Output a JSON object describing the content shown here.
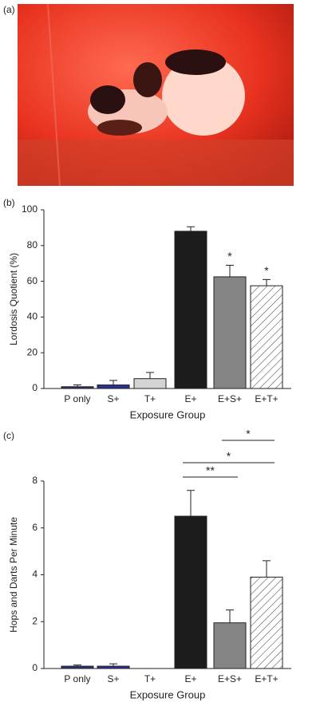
{
  "photo_label": "(a)",
  "chart_data": [
    {
      "type": "bar",
      "panel_label": "(b)",
      "y_label": "Lordosis Quotient (%)",
      "x_label": "Exposure Group",
      "categories": [
        "P only",
        "S+",
        "T+",
        "E+",
        "E+S+",
        "E+T+"
      ],
      "values": [
        1,
        2,
        5.5,
        88,
        62.5,
        57.5
      ],
      "errors": [
        1,
        2.5,
        3.5,
        2.5,
        6.5,
        3.5
      ],
      "colors": [
        "#2b2f7c",
        "#2b3096",
        "#d4d4d4",
        "#1c1c1c",
        "#858585",
        "#ffffff"
      ],
      "hatched": "E+T+",
      "ylim": [
        0,
        100
      ],
      "yticks": [
        0,
        20,
        40,
        60,
        80,
        100
      ],
      "annotations": [
        {
          "text": "*",
          "x": "E+S+"
        },
        {
          "text": "*",
          "x": "E+T+"
        }
      ]
    },
    {
      "type": "bar",
      "panel_label": "(c)",
      "y_label": "Hops and Darts Per Minute",
      "x_label": "Exposure Group",
      "categories": [
        "P only",
        "S+",
        "T+",
        "E+",
        "E+S+",
        "E+T+"
      ],
      "values": [
        0.1,
        0.1,
        0,
        6.5,
        1.95,
        3.9
      ],
      "errors": [
        0.05,
        0.1,
        null,
        1.1,
        0.55,
        0.7
      ],
      "colors": [
        "#2b2f7c",
        "#2b3096",
        "#d4d4d4",
        "#1c1c1c",
        "#858585",
        "#ffffff"
      ],
      "hatched": "E+T+",
      "ylim": [
        0,
        8
      ],
      "yticks": [
        0,
        2,
        4,
        6,
        8
      ],
      "brackets": [
        {
          "text": "**",
          "from": "E+",
          "to": "E+S+"
        },
        {
          "text": "*",
          "from": "E+",
          "to": "E+T+"
        },
        {
          "text": "*",
          "from": "E+S+",
          "to": "E+T+"
        }
      ]
    }
  ]
}
